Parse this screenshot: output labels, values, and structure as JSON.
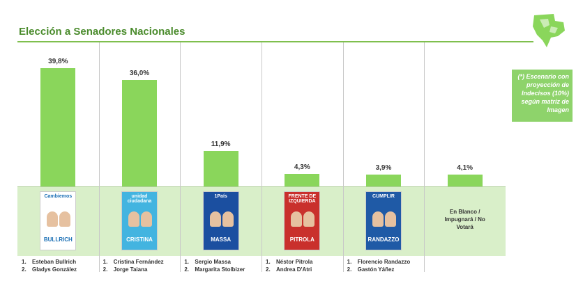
{
  "title": "Elección a Senadores Nacionales",
  "note": "(*) Escenario con proyección de Indecisos (10%) según matriz de Imagen",
  "colors": {
    "bar": "#8ad65b",
    "title": "#4a8b2c",
    "band": "#d9efc9"
  },
  "chart_data": {
    "type": "bar",
    "title": "Elección a Senadores Nacionales",
    "categories": [
      "Cambiemos",
      "Unidad Ciudadana",
      "1País",
      "Frente de Izquierda",
      "Cumplir",
      "En Blanco / Impugnará / No Votará"
    ],
    "values": [
      39.8,
      36.0,
      11.9,
      4.3,
      3.9,
      4.1
    ],
    "labels": [
      "39,8%",
      "36,0%",
      "11,9%",
      "4,3%",
      "3,9%",
      "4,1%"
    ],
    "ylim": [
      0,
      42
    ],
    "grid": false
  },
  "columns": [
    {
      "ballot_title": "Cambiemos",
      "ballot_name": "BULLRICH",
      "ballot_bg": "#ffffff",
      "ballot_fg": "#1a6fb5",
      "cands": [
        {
          "n": "1.",
          "name": "Esteban Bullrich"
        },
        {
          "n": "2.",
          "name": "Gladys González"
        }
      ]
    },
    {
      "ballot_title": "unidad ciudadana",
      "ballot_name": "CRISTINA",
      "ballot_bg": "#43b4e0",
      "ballot_fg": "#ffffff",
      "cands": [
        {
          "n": "1.",
          "name": "Cristina Fernández"
        },
        {
          "n": "2.",
          "name": "Jorge Taiana"
        }
      ]
    },
    {
      "ballot_title": "1País",
      "ballot_name": "MASSA",
      "ballot_bg": "#1b4fa0",
      "ballot_fg": "#ffffff",
      "cands": [
        {
          "n": "1.",
          "name": "Sergio Massa"
        },
        {
          "n": "2.",
          "name": "Margarita Stolbizer"
        }
      ]
    },
    {
      "ballot_title": "FRENTE DE IZQUIERDA",
      "ballot_name": "PITROLA",
      "ballot_bg": "#c9302c",
      "ballot_fg": "#ffffff",
      "cands": [
        {
          "n": "1.",
          "name": "Néstor Pitrola"
        },
        {
          "n": "2.",
          "name": "Andrea D'Atri"
        }
      ]
    },
    {
      "ballot_title": "CUMPLIR",
      "ballot_name": "RANDAZZO",
      "ballot_bg": "#1f5aa6",
      "ballot_fg": "#ffffff",
      "cands": [
        {
          "n": "1.",
          "name": "Florencio Randazzo"
        },
        {
          "n": "2.",
          "name": "Gastón Yáñez"
        }
      ]
    },
    {
      "other_label": "En Blanco / Impugnará / No Votará",
      "cands": []
    }
  ]
}
